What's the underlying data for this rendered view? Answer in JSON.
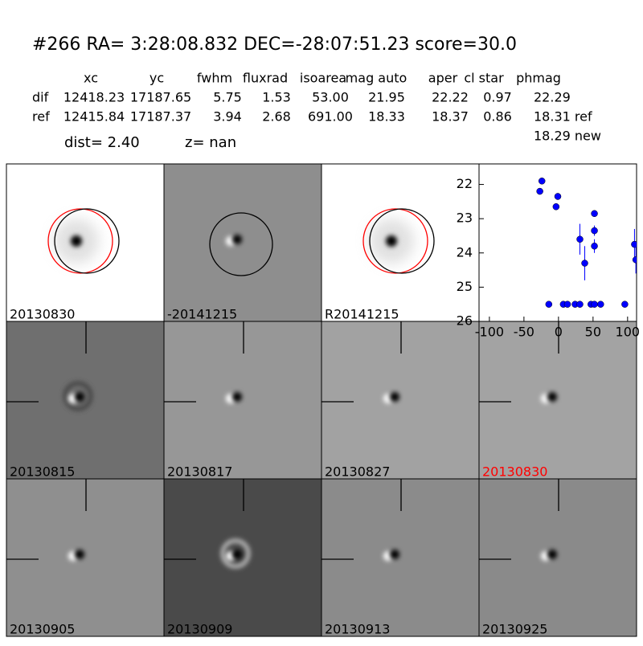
{
  "header": {
    "title": "#266   RA= 3:28:08.832 DEC=-28:07:51.23      score=30.0"
  },
  "table": {
    "columns": [
      "xc",
      "yc",
      "fwhm",
      "fluxrad",
      "isoarea",
      "mag auto",
      "aper",
      "cl star",
      "phmag"
    ],
    "rows": [
      {
        "name": "dif",
        "values": [
          "12418.23",
          "17187.65",
          "5.75",
          "1.53",
          "53.00",
          "21.95",
          "22.22",
          "0.97",
          "22.29"
        ]
      },
      {
        "name": "ref",
        "values": [
          "12415.84",
          "17187.37",
          "3.94",
          "2.68",
          "691.00",
          "18.33",
          "18.37",
          "0.86",
          "18.31 ref"
        ]
      }
    ],
    "extra": "18.29 new"
  },
  "info": {
    "dist": "dist=  2.40",
    "z": "z=   nan"
  },
  "panels": [
    {
      "label": "20130830"
    },
    {
      "label": "-20141215"
    },
    {
      "label": "R20141215"
    },
    {
      "label": "20130815"
    },
    {
      "label": "20130817"
    },
    {
      "label": "20130827"
    },
    {
      "label": "20130830",
      "color": "#ff0000"
    },
    {
      "label": "20130905"
    },
    {
      "label": "20130909"
    },
    {
      "label": "20130913"
    },
    {
      "label": "20130925"
    }
  ],
  "chart_data": {
    "type": "scatter",
    "color": "#0000ff",
    "x": [
      -27,
      -24,
      -14,
      -3.5,
      -1,
      7,
      13,
      24,
      31,
      31,
      38,
      47,
      52,
      52,
      52,
      52,
      61,
      96,
      110,
      112
    ],
    "values": [
      22.2,
      21.9,
      25.5,
      22.65,
      22.35,
      25.5,
      25.5,
      25.5,
      25.5,
      23.6,
      24.3,
      25.5,
      25.5,
      23.35,
      23.8,
      22.85,
      25.5,
      25.5,
      23.75,
      24.2
    ],
    "errors": [
      0.05,
      0.04,
      0.05,
      0.1,
      0.1,
      0.05,
      0.05,
      0.05,
      0.05,
      0.45,
      0.5,
      0.05,
      0.05,
      0.15,
      0.2,
      0.08,
      0.05,
      0.05,
      0.45,
      0.4
    ],
    "xlim": [
      -115,
      113
    ],
    "ylim": [
      26,
      21.4
    ],
    "xticks": [
      -100,
      -50,
      0,
      50,
      100
    ],
    "yticks": [
      22,
      23,
      24,
      25,
      26
    ]
  }
}
